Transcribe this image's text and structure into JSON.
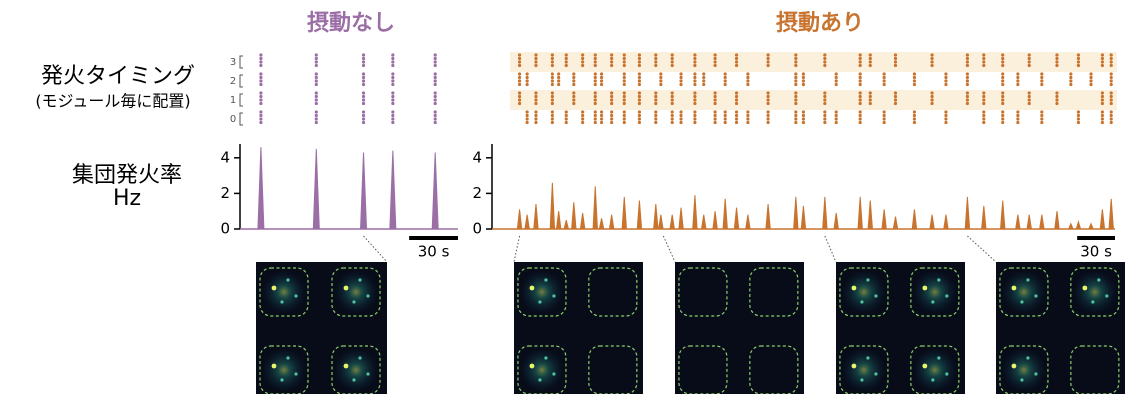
{
  "row_labels": {
    "raster": "発火タイミング",
    "raster_note": "(モジュール毎に配置)",
    "rate": "集団発火率",
    "rate_unit": "Hz"
  },
  "chart_data": [
    {
      "type": "line",
      "title": "摂動なし",
      "color": "#9b6ea6",
      "xlim": [
        0,
        132
      ],
      "x": [
        11,
        45,
        74,
        92,
        118
      ],
      "values": [
        4.6,
        4.5,
        4.3,
        4.4,
        4.3
      ],
      "ylim": [
        0,
        5
      ],
      "yticks": [
        0,
        2,
        4
      ],
      "scalebar": {
        "value": 30,
        "label": "30 s"
      },
      "raster": {
        "labels": [
          "3",
          "2",
          "1",
          "0"
        ],
        "events": [
          [
            11,
            45,
            74,
            92,
            118
          ],
          [
            11,
            45,
            74,
            92,
            118
          ],
          [
            11,
            45,
            74,
            92,
            118
          ],
          [
            11,
            45,
            74,
            92,
            118
          ]
        ]
      },
      "snapshot_times": [
        74
      ]
    },
    {
      "type": "line",
      "title": "摂動あり",
      "color": "#c8742f",
      "xlim": [
        0,
        478
      ],
      "x": [
        6,
        12,
        19,
        32,
        37,
        43,
        49,
        56,
        66,
        71,
        79,
        89,
        101,
        114,
        118,
        127,
        134,
        145,
        152,
        161,
        169,
        178,
        187,
        203,
        225,
        231,
        248,
        257,
        276,
        284,
        295,
        304,
        319,
        333,
        344,
        361,
        374,
        389,
        401,
        410,
        420,
        432,
        443,
        449,
        459,
        468,
        475
      ],
      "values": [
        1.1,
        0.8,
        1.4,
        2.6,
        1.0,
        0.5,
        1.5,
        0.9,
        2.4,
        0.6,
        0.8,
        1.8,
        1.6,
        1.4,
        0.8,
        0.8,
        1.2,
        1.9,
        0.8,
        1.0,
        1.7,
        1.2,
        0.8,
        1.4,
        1.8,
        1.3,
        1.8,
        0.9,
        1.8,
        1.6,
        1.1,
        0.7,
        1.1,
        0.8,
        0.8,
        1.8,
        1.3,
        1.6,
        0.8,
        0.8,
        0.8,
        1.0,
        0.3,
        0.4,
        0.3,
        1.1,
        1.7
      ],
      "ylim": [
        0,
        5
      ],
      "yticks": [
        0,
        2,
        4
      ],
      "scalebar": {
        "value": 30,
        "label": "30 s"
      },
      "raster": {
        "events": [
          [
            6,
            19,
            32,
            43,
            56,
            66,
            79,
            89,
            101,
            114,
            127,
            145,
            161,
            178,
            203,
            225,
            248,
            276,
            284,
            304,
            333,
            361,
            374,
            389,
            410,
            432,
            449,
            468,
            475
          ],
          [
            6,
            12,
            32,
            37,
            49,
            66,
            71,
            89,
            101,
            118,
            134,
            145,
            152,
            169,
            187,
            225,
            231,
            257,
            276,
            295,
            319,
            344,
            361,
            389,
            401,
            420,
            443,
            459,
            475
          ],
          [
            6,
            19,
            32,
            49,
            66,
            79,
            89,
            101,
            114,
            127,
            145,
            161,
            178,
            203,
            225,
            248,
            276,
            284,
            304,
            333,
            361,
            374,
            389,
            410,
            432,
            468,
            475
          ],
          [
            12,
            19,
            32,
            43,
            56,
            66,
            71,
            79,
            89,
            101,
            114,
            127,
            134,
            145,
            161,
            169,
            178,
            187,
            203,
            225,
            231,
            248,
            257,
            276,
            295,
            319,
            344,
            374,
            389,
            401,
            420,
            449,
            468,
            475
          ]
        ]
      },
      "snapshot_times": [
        6,
        120,
        248,
        361
      ]
    }
  ]
}
